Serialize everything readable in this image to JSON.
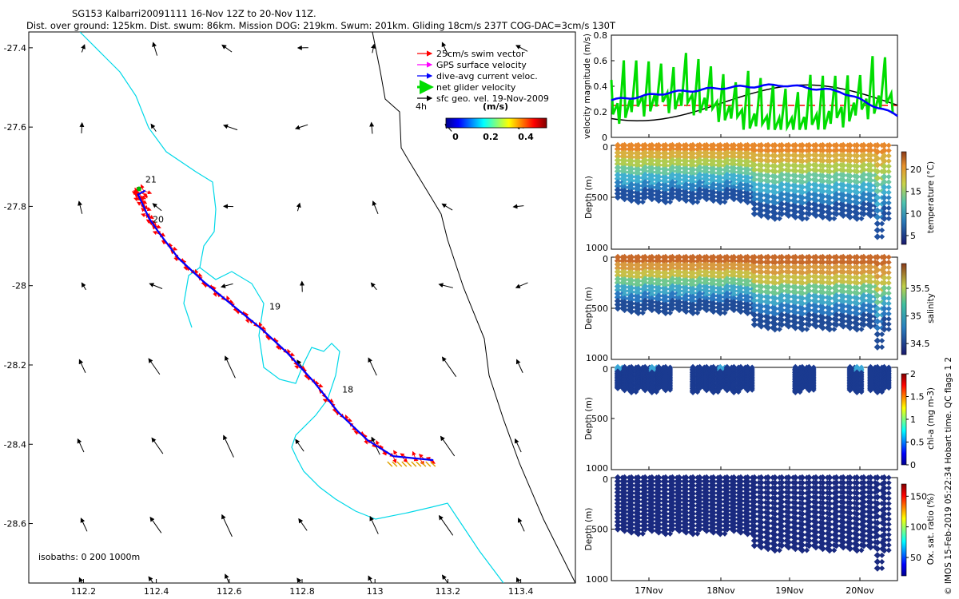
{
  "title_line1": "SG153 Kalbarri20091111 16-Nov 12Z to 20-Nov 11Z.",
  "title_line2": "Dist. over ground: 125km. Dist. swum: 86km. Mission DOG: 219km. Swum: 201km. Gliding 18cm/s 237T COG-DAC=3cm/s 130T",
  "map": {
    "xticks": [
      "112.2",
      "112.4",
      "112.6",
      "112.8",
      "113",
      "113.2",
      "113.4"
    ],
    "xtick_values": [
      112.2,
      112.4,
      112.6,
      112.8,
      113.0,
      113.2,
      113.4
    ],
    "yticks": [
      "-27.4",
      "-27.6",
      "-27.8",
      "-28",
      "-28.2",
      "-28.4",
      "-28.6"
    ],
    "ytick_values": [
      -27.4,
      -27.6,
      -27.8,
      -28.0,
      -28.2,
      -28.4,
      -28.6
    ],
    "xlim": [
      112.05,
      113.55
    ],
    "ylim": [
      -28.75,
      -27.36
    ],
    "legend": [
      {
        "label": "25cm/s swim vector",
        "color": "#ff0000"
      },
      {
        "label": "GPS surface velocity",
        "color": "#ff00ff"
      },
      {
        "label": "dive-avg current veloc.",
        "color": "#0000ff"
      },
      {
        "label": "net glider velocity",
        "color": "#00dd00"
      },
      {
        "label": "sfc geo. vel. 19-Nov-2009",
        "color": "#000000"
      }
    ],
    "scale_label": "4h",
    "colorbar_title": "(m/s)",
    "colorbar_ticks": [
      "0",
      "0.2",
      "0.4"
    ],
    "isobaths_label": "isobaths: 0   200  1000m",
    "day_labels": [
      {
        "label": "21",
        "lon": 112.37,
        "lat": -27.74
      },
      {
        "label": "20",
        "lon": 112.39,
        "lat": -27.84
      },
      {
        "label": "19",
        "lon": 112.71,
        "lat": -28.06
      },
      {
        "label": "18",
        "lon": 112.91,
        "lat": -28.27
      }
    ],
    "track": [
      [
        113.16,
        -28.44
      ],
      [
        113.05,
        -28.43
      ],
      [
        112.98,
        -28.39
      ],
      [
        112.9,
        -28.32
      ],
      [
        112.83,
        -28.24
      ],
      [
        112.76,
        -28.17
      ],
      [
        112.69,
        -28.11
      ],
      [
        112.61,
        -28.05
      ],
      [
        112.53,
        -27.99
      ],
      [
        112.46,
        -27.93
      ],
      [
        112.41,
        -27.87
      ],
      [
        112.38,
        -27.83
      ],
      [
        112.36,
        -27.79
      ],
      [
        112.35,
        -27.77
      ],
      [
        112.37,
        -27.76
      ]
    ]
  },
  "panels": {
    "velocity": {
      "ylabel": "velocity magnitude (m/s)",
      "yticks": [
        "0",
        "0.2",
        "0.4",
        "0.6",
        "0.8"
      ],
      "ylim": [
        0,
        0.8
      ]
    },
    "temperature": {
      "ylabel": "Depth (m)",
      "cbar_label": "temperature (°C)",
      "cbar_ticks": [
        "5",
        "10",
        "15",
        "20"
      ],
      "cbar_range": [
        3,
        24
      ],
      "yticks": [
        "0",
        "500",
        "1000"
      ]
    },
    "salinity": {
      "ylabel": "Depth (m)",
      "cbar_label": "salinity",
      "cbar_ticks": [
        "34.5",
        "35",
        "35.5"
      ],
      "cbar_range": [
        34.3,
        35.95
      ],
      "yticks": [
        "0",
        "500",
        "1000"
      ]
    },
    "chla": {
      "ylabel": "Depth (m)",
      "cbar_label": "chl-a (mg m-3)",
      "cbar_ticks": [
        "0",
        "0.5",
        "1",
        "1.5",
        "2"
      ],
      "cbar_range": [
        0,
        2
      ],
      "yticks": [
        "0",
        "500",
        "1000"
      ]
    },
    "oxygen": {
      "ylabel": "Depth (m)",
      "cbar_label": "Ox. sat. ratio (%)",
      "cbar_ticks": [
        "50",
        "100",
        "150"
      ],
      "cbar_range": [
        20,
        170
      ],
      "yticks": [
        "0",
        "500",
        "1000"
      ]
    },
    "date_ticks": [
      "17Nov",
      "18Nov",
      "19Nov",
      "20Nov"
    ]
  },
  "footer": "© IMOS 15-Feb-2019 05:22:34 Hobart time. QC flags 1  2",
  "chart_data": [
    {
      "type": "line",
      "title": "velocity magnitude (m/s)",
      "x": [
        "16-Nov 12Z",
        "17-Nov",
        "18-Nov",
        "19-Nov",
        "20-Nov",
        "20-Nov 11Z"
      ],
      "ylim": [
        0,
        0.8
      ],
      "series": [
        {
          "name": "dive-avg current veloc.",
          "color": "#0000ff",
          "values": [
            0.29,
            0.35,
            0.39,
            0.41,
            0.36,
            0.17
          ]
        },
        {
          "name": "sfc geo. vel.",
          "color": "#000000",
          "values": [
            0.19,
            0.12,
            0.28,
            0.41,
            0.31,
            0.23
          ]
        },
        {
          "name": "net glider velocity",
          "color": "#00dd00",
          "values": [
            0.3,
            0.45,
            0.35,
            0.4,
            0.35,
            0.2
          ]
        },
        {
          "name": "",
          "color": "#ff0000",
          "values": [
            0.25,
            0.25,
            0.25,
            0.25,
            0.25,
            0.25
          ]
        }
      ]
    },
    {
      "type": "line",
      "title": "glider track",
      "xlabel": "",
      "ylabel": "",
      "xlim": [
        112.05,
        113.55
      ],
      "ylim": [
        -28.75,
        -27.36
      ]
    }
  ]
}
